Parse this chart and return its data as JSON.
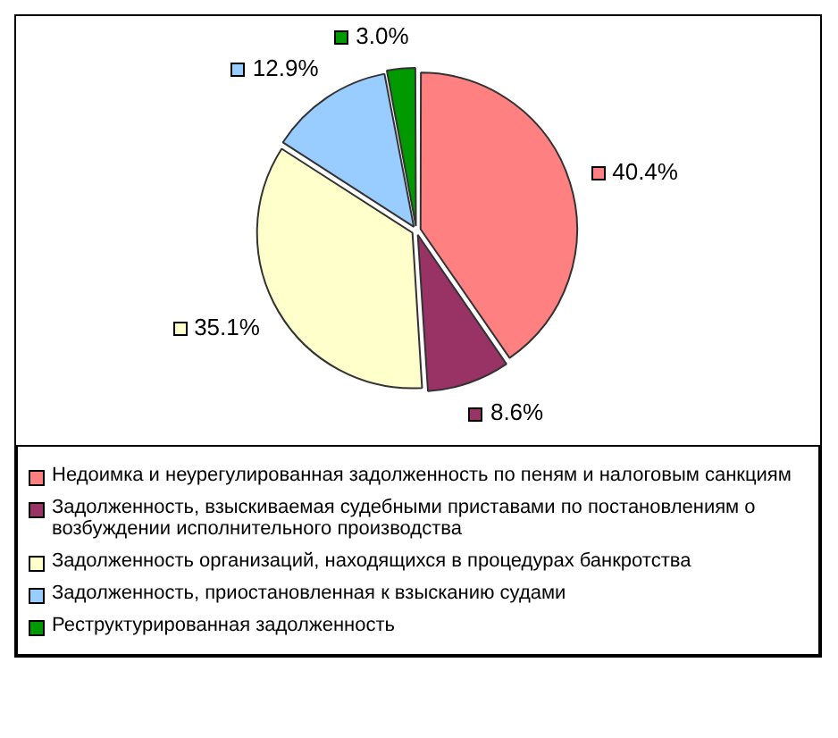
{
  "chart_data": {
    "type": "pie",
    "categories": [
      "Недоимка и неурегулированная задолженность по пеням и налоговым санкциям",
      "Задолженность, взыскиваемая судебными приставами по постановлениям о возбуждении исполнительного производства",
      "Задолженность организаций, находящихся в процедурах банкротства",
      "Задолженность, приостановленная к взысканию судами",
      "Реструктурированная задолженность"
    ],
    "values": [
      40.4,
      8.6,
      35.1,
      12.9,
      3.0
    ],
    "value_labels": [
      "40.4%",
      "8.6%",
      "35.1%",
      "12.9%",
      "3.0%"
    ],
    "colors": [
      "#ff8080",
      "#993366",
      "#ffffcc",
      "#99ccff",
      "#009900"
    ],
    "legend": "bottom"
  }
}
